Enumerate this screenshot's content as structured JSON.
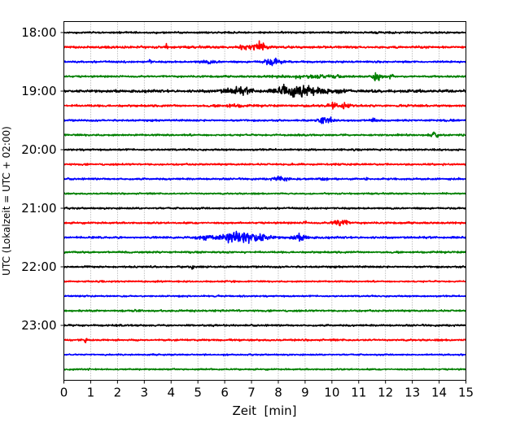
{
  "chart_data": {
    "type": "line",
    "subtype": "helicorder",
    "title": "",
    "xlabel": "Zeit  [min]",
    "ylabel": "UTC (Lokalzeit = UTC + 02:00)",
    "xlim": [
      0,
      15
    ],
    "x_ticks": [
      "0",
      "1",
      "2",
      "3",
      "4",
      "5",
      "6",
      "7",
      "8",
      "9",
      "10",
      "11",
      "12",
      "13",
      "14",
      "15"
    ],
    "y_ticks": [
      "18:00",
      "19:00",
      "20:00",
      "21:00",
      "22:00",
      "23:00"
    ],
    "trace_interval_min": 15,
    "grid": "vertical dotted",
    "colors": [
      "#000000",
      "#ff0000",
      "#0000ff",
      "#008000"
    ],
    "traces": [
      {
        "start": "18:00",
        "noise": 0.12,
        "events": []
      },
      {
        "start": "18:15",
        "noise": 0.15,
        "events": [
          {
            "t": 3.8,
            "amp": 0.4,
            "dur": 0.05
          },
          {
            "t": 7.0,
            "amp": 0.5,
            "dur": 0.35
          },
          {
            "t": 7.4,
            "amp": 0.25,
            "dur": 0.3
          }
        ]
      },
      {
        "start": "18:30",
        "noise": 0.12,
        "events": [
          {
            "t": 3.2,
            "amp": 0.35,
            "dur": 0.05
          },
          {
            "t": 5.4,
            "amp": 0.15,
            "dur": 0.4
          },
          {
            "t": 7.8,
            "amp": 0.45,
            "dur": 0.35
          }
        ]
      },
      {
        "start": "18:45",
        "noise": 0.12,
        "events": [
          {
            "t": 11.7,
            "amp": 0.6,
            "dur": 0.15
          },
          {
            "t": 12.2,
            "amp": 0.3,
            "dur": 0.1
          },
          {
            "t": 9.5,
            "amp": 0.15,
            "dur": 1.5
          }
        ]
      },
      {
        "start": "19:00",
        "noise": 0.18,
        "events": [
          {
            "t": 6.5,
            "amp": 0.4,
            "dur": 0.6
          },
          {
            "t": 8.3,
            "amp": 0.35,
            "dur": 0.4
          },
          {
            "t": 9.1,
            "amp": 0.6,
            "dur": 0.9
          }
        ]
      },
      {
        "start": "19:15",
        "noise": 0.14,
        "events": [
          {
            "t": 10.0,
            "amp": 0.55,
            "dur": 0.2
          },
          {
            "t": 10.5,
            "amp": 0.45,
            "dur": 0.15
          },
          {
            "t": 6.3,
            "amp": 0.15,
            "dur": 0.4
          }
        ]
      },
      {
        "start": "19:30",
        "noise": 0.12,
        "events": [
          {
            "t": 9.8,
            "amp": 0.55,
            "dur": 0.2
          },
          {
            "t": 11.5,
            "amp": 0.25,
            "dur": 0.1
          }
        ]
      },
      {
        "start": "19:45",
        "noise": 0.12,
        "events": [
          {
            "t": 13.8,
            "amp": 0.3,
            "dur": 0.15
          }
        ]
      },
      {
        "start": "20:00",
        "noise": 0.12,
        "events": []
      },
      {
        "start": "20:15",
        "noise": 0.12,
        "events": []
      },
      {
        "start": "20:30",
        "noise": 0.12,
        "events": [
          {
            "t": 8.1,
            "amp": 0.4,
            "dur": 0.25
          },
          {
            "t": 9.7,
            "amp": 0.15,
            "dur": 0.2
          },
          {
            "t": 11.3,
            "amp": 0.25,
            "dur": 0.05
          }
        ]
      },
      {
        "start": "20:45",
        "noise": 0.1,
        "events": []
      },
      {
        "start": "21:00",
        "noise": 0.12,
        "events": []
      },
      {
        "start": "21:15",
        "noise": 0.12,
        "events": [
          {
            "t": 9.0,
            "amp": 0.2,
            "dur": 0.05
          },
          {
            "t": 10.3,
            "amp": 0.55,
            "dur": 0.25
          }
        ]
      },
      {
        "start": "21:30",
        "noise": 0.14,
        "events": [
          {
            "t": 5.2,
            "amp": 0.35,
            "dur": 0.3
          },
          {
            "t": 6.2,
            "amp": 0.55,
            "dur": 0.4
          },
          {
            "t": 7.0,
            "amp": 0.75,
            "dur": 0.6
          },
          {
            "t": 8.8,
            "amp": 0.4,
            "dur": 0.3
          }
        ]
      },
      {
        "start": "21:45",
        "noise": 0.12,
        "events": []
      },
      {
        "start": "22:00",
        "noise": 0.12,
        "events": [
          {
            "t": 4.8,
            "amp": 0.25,
            "dur": 0.05
          }
        ]
      },
      {
        "start": "22:15",
        "noise": 0.1,
        "events": []
      },
      {
        "start": "22:30",
        "noise": 0.1,
        "events": []
      },
      {
        "start": "22:45",
        "noise": 0.12,
        "events": []
      },
      {
        "start": "23:00",
        "noise": 0.12,
        "events": []
      },
      {
        "start": "23:15",
        "noise": 0.12,
        "events": [
          {
            "t": 0.8,
            "amp": 0.3,
            "dur": 0.05
          }
        ]
      },
      {
        "start": "23:30",
        "noise": 0.1,
        "events": []
      },
      {
        "start": "23:45",
        "noise": 0.1,
        "events": []
      }
    ]
  }
}
